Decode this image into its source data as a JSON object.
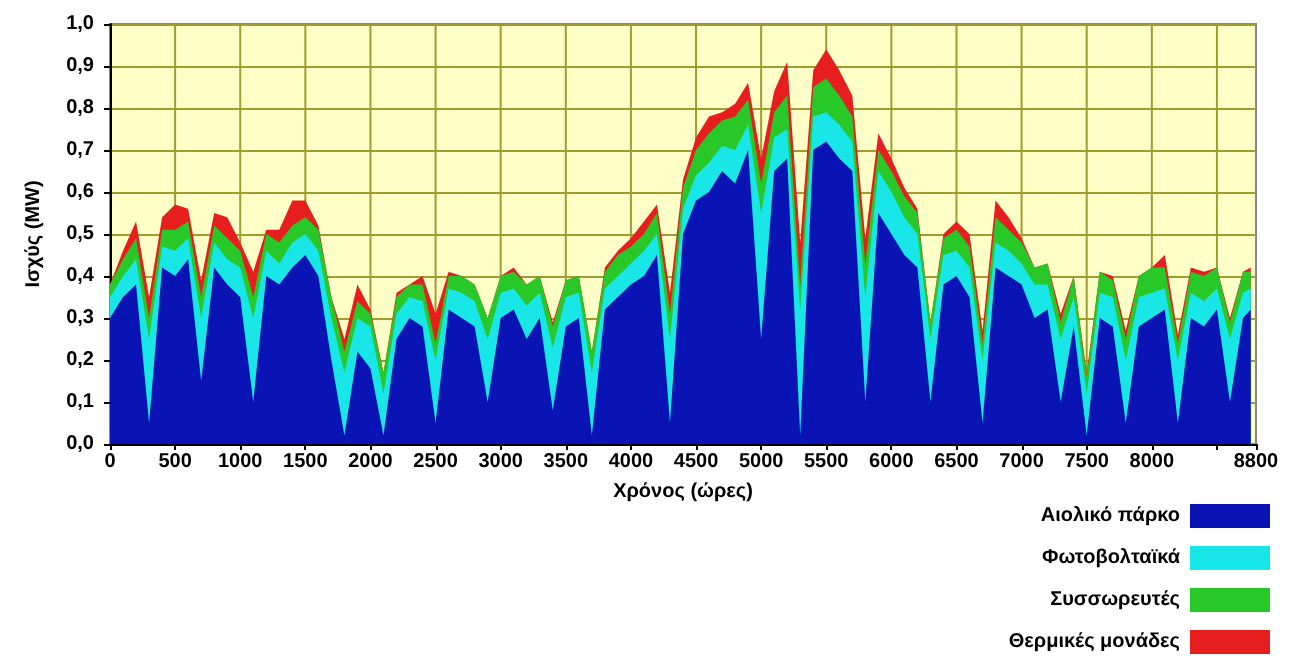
{
  "chart_data": {
    "type": "area",
    "stacked": true,
    "xlabel": "Χρόνος (ώρες)",
    "ylabel": "Ισχύς (MW)",
    "x": [
      0,
      100,
      200,
      300,
      400,
      500,
      600,
      700,
      800,
      900,
      1000,
      1100,
      1200,
      1300,
      1400,
      1500,
      1600,
      1700,
      1800,
      1900,
      2000,
      2100,
      2200,
      2300,
      2400,
      2500,
      2600,
      2700,
      2800,
      2900,
      3000,
      3100,
      3200,
      3300,
      3400,
      3500,
      3600,
      3700,
      3800,
      3900,
      4000,
      4100,
      4200,
      4300,
      4400,
      4500,
      4600,
      4700,
      4800,
      4900,
      5000,
      5100,
      5200,
      5300,
      5400,
      5500,
      5600,
      5700,
      5800,
      5900,
      6000,
      6100,
      6200,
      6300,
      6400,
      6500,
      6600,
      6700,
      6800,
      6900,
      7000,
      7100,
      7200,
      7300,
      7400,
      7500,
      7600,
      7700,
      7800,
      7900,
      8000,
      8100,
      8200,
      8300,
      8400,
      8500,
      8600,
      8700,
      8760
    ],
    "series": [
      {
        "name": "Αιολικό πάρκο",
        "color": "#0a14b4",
        "values": [
          0.3,
          0.35,
          0.38,
          0.05,
          0.42,
          0.4,
          0.44,
          0.15,
          0.42,
          0.38,
          0.35,
          0.1,
          0.4,
          0.38,
          0.42,
          0.45,
          0.4,
          0.2,
          0.02,
          0.22,
          0.18,
          0.02,
          0.25,
          0.3,
          0.28,
          0.05,
          0.32,
          0.3,
          0.28,
          0.1,
          0.3,
          0.32,
          0.25,
          0.3,
          0.08,
          0.28,
          0.3,
          0.02,
          0.32,
          0.35,
          0.38,
          0.4,
          0.45,
          0.05,
          0.5,
          0.58,
          0.6,
          0.65,
          0.62,
          0.7,
          0.25,
          0.65,
          0.68,
          0.02,
          0.7,
          0.72,
          0.68,
          0.65,
          0.1,
          0.55,
          0.5,
          0.45,
          0.42,
          0.1,
          0.38,
          0.4,
          0.35,
          0.05,
          0.42,
          0.4,
          0.38,
          0.3,
          0.32,
          0.1,
          0.28,
          0.02,
          0.3,
          0.28,
          0.05,
          0.28,
          0.3,
          0.32,
          0.05,
          0.3,
          0.28,
          0.32,
          0.1,
          0.3,
          0.32
        ]
      },
      {
        "name": "Φωτοβολταϊκά",
        "color": "#19e6e6",
        "values": [
          0.05,
          0.05,
          0.06,
          0.2,
          0.05,
          0.06,
          0.05,
          0.15,
          0.06,
          0.06,
          0.07,
          0.2,
          0.06,
          0.05,
          0.06,
          0.05,
          0.06,
          0.1,
          0.15,
          0.08,
          0.1,
          0.1,
          0.06,
          0.05,
          0.06,
          0.15,
          0.05,
          0.06,
          0.06,
          0.15,
          0.06,
          0.05,
          0.08,
          0.06,
          0.15,
          0.07,
          0.06,
          0.15,
          0.05,
          0.05,
          0.05,
          0.06,
          0.05,
          0.2,
          0.06,
          0.06,
          0.07,
          0.06,
          0.08,
          0.06,
          0.3,
          0.08,
          0.07,
          0.3,
          0.08,
          0.07,
          0.08,
          0.07,
          0.25,
          0.1,
          0.1,
          0.09,
          0.08,
          0.15,
          0.07,
          0.06,
          0.07,
          0.15,
          0.06,
          0.06,
          0.05,
          0.08,
          0.06,
          0.15,
          0.07,
          0.1,
          0.06,
          0.07,
          0.15,
          0.07,
          0.06,
          0.05,
          0.15,
          0.06,
          0.06,
          0.05,
          0.15,
          0.06,
          0.05
        ]
      },
      {
        "name": "Συσσωρευτές",
        "color": "#28c828",
        "values": [
          0.03,
          0.04,
          0.05,
          0.05,
          0.04,
          0.05,
          0.04,
          0.05,
          0.04,
          0.05,
          0.04,
          0.05,
          0.04,
          0.05,
          0.04,
          0.04,
          0.05,
          0.05,
          0.05,
          0.04,
          0.03,
          0.05,
          0.04,
          0.03,
          0.04,
          0.04,
          0.03,
          0.04,
          0.04,
          0.05,
          0.04,
          0.04,
          0.05,
          0.04,
          0.05,
          0.04,
          0.04,
          0.05,
          0.04,
          0.05,
          0.04,
          0.04,
          0.05,
          0.06,
          0.05,
          0.06,
          0.07,
          0.06,
          0.08,
          0.06,
          0.07,
          0.06,
          0.08,
          0.06,
          0.07,
          0.08,
          0.07,
          0.06,
          0.08,
          0.05,
          0.05,
          0.05,
          0.05,
          0.04,
          0.04,
          0.05,
          0.05,
          0.04,
          0.06,
          0.05,
          0.05,
          0.04,
          0.05,
          0.04,
          0.05,
          0.04,
          0.05,
          0.04,
          0.05,
          0.05,
          0.06,
          0.05,
          0.04,
          0.05,
          0.06,
          0.05,
          0.04,
          0.05,
          0.04
        ]
      },
      {
        "name": "Θερμικές μονάδες",
        "color": "#e61e1e",
        "values": [
          0.0,
          0.02,
          0.04,
          0.05,
          0.03,
          0.06,
          0.03,
          0.04,
          0.03,
          0.05,
          0.02,
          0.06,
          0.01,
          0.03,
          0.06,
          0.04,
          0.01,
          0.0,
          0.03,
          0.04,
          0.01,
          0.0,
          0.01,
          0.0,
          0.02,
          0.07,
          0.01,
          0.0,
          0.0,
          0.0,
          0.0,
          0.01,
          0.0,
          0.0,
          0.01,
          0.0,
          0.0,
          0.0,
          0.01,
          0.01,
          0.02,
          0.03,
          0.02,
          0.05,
          0.02,
          0.03,
          0.04,
          0.02,
          0.03,
          0.04,
          0.06,
          0.05,
          0.08,
          0.1,
          0.04,
          0.07,
          0.06,
          0.05,
          0.06,
          0.04,
          0.03,
          0.02,
          0.01,
          0.0,
          0.01,
          0.02,
          0.03,
          0.03,
          0.04,
          0.03,
          0.01,
          0.0,
          0.0,
          0.02,
          0.0,
          0.01,
          0.0,
          0.01,
          0.02,
          0.0,
          0.0,
          0.03,
          0.02,
          0.01,
          0.01,
          0.0,
          0.01,
          0.0,
          0.01
        ]
      }
    ],
    "xlim": [
      0,
      8800
    ],
    "xticks": [
      0,
      500,
      1000,
      1500,
      2000,
      2500,
      3000,
      3500,
      4000,
      4500,
      5000,
      5500,
      6000,
      6500,
      7000,
      7500,
      8000,
      {
        "value": 8500,
        "label": null
      },
      8800
    ],
    "ylim": [
      0,
      1
    ],
    "yticks": [
      {
        "value": 0,
        "label": "0,0"
      },
      {
        "value": 0.1,
        "label": "0,1"
      },
      {
        "value": 0.2,
        "label": "0,2"
      },
      {
        "value": 0.3,
        "label": "0,3"
      },
      {
        "value": 0.4,
        "label": "0,4"
      },
      {
        "value": 0.5,
        "label": "0,5"
      },
      {
        "value": 0.6,
        "label": "0,6"
      },
      {
        "value": 0.7,
        "label": "0,7"
      },
      {
        "value": 0.8,
        "label": "0,8"
      },
      {
        "value": 0.9,
        "label": "0,9"
      },
      {
        "value": 1,
        "label": "1,0"
      }
    ],
    "grid": true,
    "legend": "bottom right"
  }
}
